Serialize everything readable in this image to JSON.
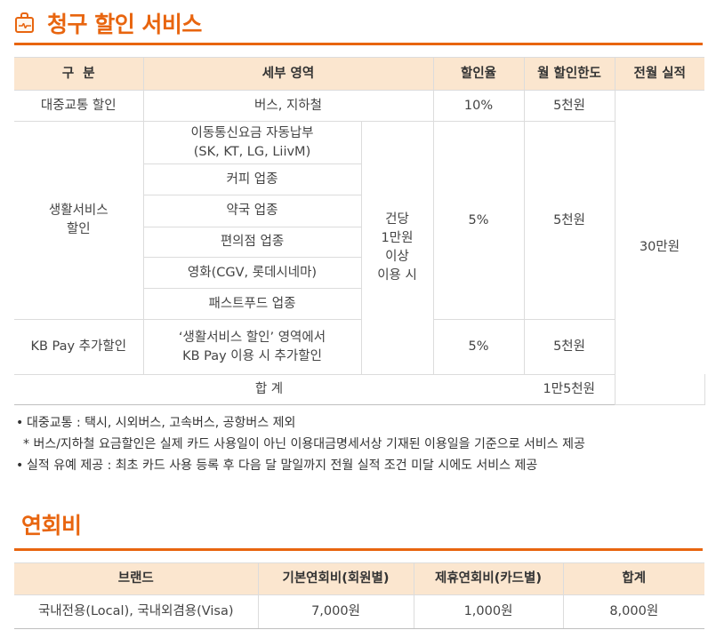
{
  "section1": {
    "title": "청구 할인 서비스",
    "icon": "shopping-bag-pulse-icon"
  },
  "discount_table": {
    "headers": [
      "구  분",
      "세부 영역",
      "할인율",
      "월 할인한도",
      "전월 실적"
    ],
    "public_transport": {
      "category": "대중교통 할인",
      "area": "버스, 지하철",
      "rate": "10%",
      "limit": "5천원"
    },
    "life_service": {
      "category_line1": "생활서비스",
      "category_line2": "할인",
      "areas": [
        "이동통신요금 자동납부",
        "(SK, KT, LG, LiivM)",
        "커피 업종",
        "약국 업종",
        "편의점 업종",
        "영화(CGV, 롯데시네마)",
        "패스트푸드 업종"
      ],
      "condition_lines": [
        "건당",
        "1만원",
        "이상",
        "이용 시"
      ],
      "rate": "5%",
      "limit": "5천원"
    },
    "kbpay": {
      "category": "KB Pay 추가할인",
      "area_line1": "‘생활서비스 할인’ 영역에서",
      "area_line2": "KB Pay 이용 시 추가할인",
      "rate": "5%",
      "limit": "5천원"
    },
    "previous_month_performance": "30만원",
    "total": {
      "label": "합 계",
      "limit": "1만5천원"
    }
  },
  "notes": {
    "bullet": "•",
    "line1": "대중교통 : 택시, 시외버스, 고속버스, 공항버스 제외",
    "line2": "* 버스/지하철 요금할인은 실제 카드 사용일이 아닌 이용대금명세서상 기재된 이용일을 기준으로 서비스 제공",
    "line3": "실적 유예 제공 : 최초 카드 사용 등록 후 다음 달 말일까지 전월 실적 조건 미달 시에도 서비스 제공"
  },
  "section2": {
    "title": "연회비"
  },
  "fee_table": {
    "headers": [
      "브랜드",
      "기본연회비(회원별)",
      "제휴연회비(카드별)",
      "합계"
    ],
    "row": [
      "국내전용(Local), 국내외겸용(Visa)",
      "7,000원",
      "1,000원",
      "8,000원"
    ]
  },
  "colors": {
    "accent": "#e8650f",
    "header_bg": "#fbe6cf",
    "border": "#dcdcdc"
  }
}
